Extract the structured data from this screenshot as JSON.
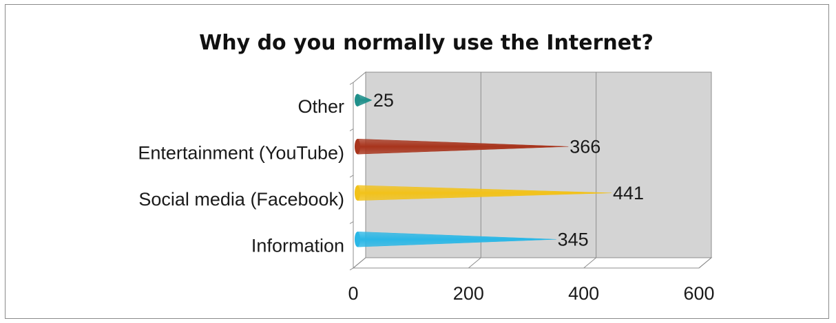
{
  "chart_data": {
    "type": "bar",
    "orientation": "horizontal",
    "style": "3d-cone",
    "title": "Why do you normally use the Internet?",
    "categories": [
      "Information",
      "Social media (Facebook)",
      "Entertainment (YouTube)",
      "Other"
    ],
    "values": [
      345,
      441,
      366,
      25
    ],
    "colors": [
      "#2ab7e6",
      "#f2c21a",
      "#a8341c",
      "#1f8f8a"
    ],
    "xlim": [
      0,
      600
    ],
    "xticks": [
      "0",
      "200",
      "400",
      "600"
    ],
    "grid": true,
    "legend": "none",
    "wall_color": "#d4d4d4"
  }
}
